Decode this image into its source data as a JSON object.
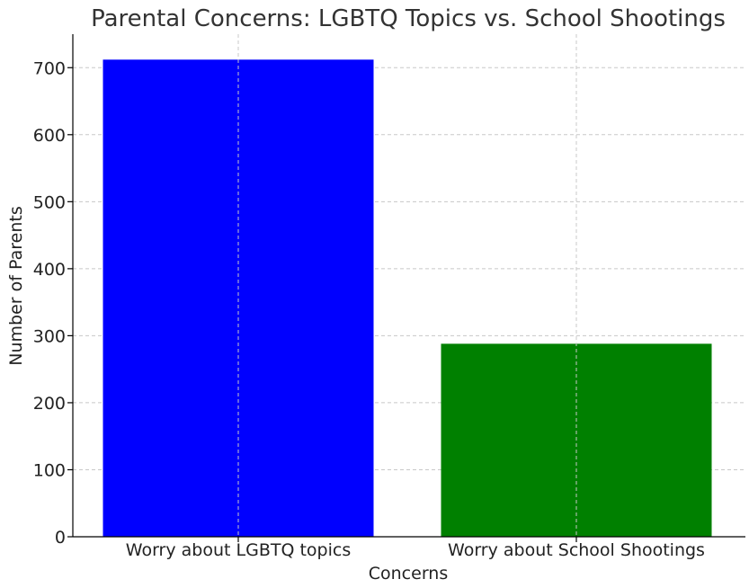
{
  "chart_data": {
    "type": "bar",
    "title": "Parental Concerns: LGBTQ Topics vs. School Shootings",
    "xlabel": "Concerns",
    "ylabel": "Number of Parents",
    "categories": [
      "Worry about LGBTQ topics",
      "Worry about School Shootings"
    ],
    "values": [
      712,
      288
    ],
    "colors": [
      "#0000ff",
      "#008000"
    ],
    "ylim": [
      0,
      750
    ],
    "yticks": [
      0,
      100,
      200,
      300,
      400,
      500,
      600,
      700
    ],
    "grid": true
  }
}
